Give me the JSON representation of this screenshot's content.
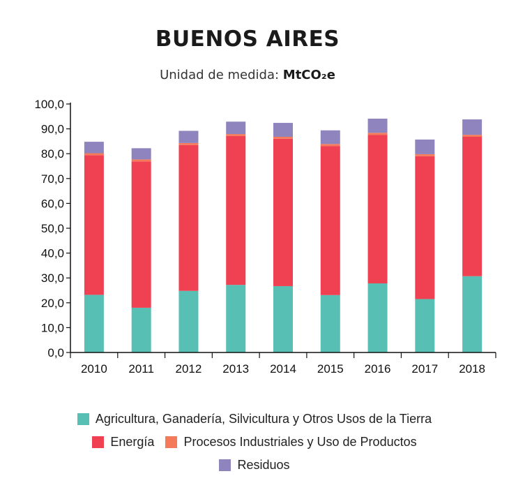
{
  "chart_data": {
    "type": "bar",
    "stacked": true,
    "title": "BUENOS AIRES",
    "subtitle_prefix": "Unidad de medida: ",
    "subtitle_unit": "MtCO₂e",
    "categories": [
      "2010",
      "2011",
      "2012",
      "2013",
      "2014",
      "2015",
      "2016",
      "2017",
      "2018"
    ],
    "ylim": [
      0,
      100
    ],
    "yticks": [
      "0,0",
      "10,0",
      "20,0",
      "30,0",
      "40,0",
      "50,0",
      "60,0",
      "70,0",
      "80,0",
      "90,0",
      "100,0"
    ],
    "series": [
      {
        "name": "Agricultura, Ganadería, Silvicultura y Otros Usos de la Tierra",
        "color": "#58bfb4",
        "values": [
          23.2,
          18.0,
          24.8,
          27.2,
          26.7,
          23.1,
          27.8,
          21.5,
          30.7
        ]
      },
      {
        "name": "Energía",
        "color": "#f04152",
        "values": [
          56.2,
          58.9,
          58.7,
          59.9,
          59.3,
          60.0,
          59.8,
          57.5,
          56.1
        ]
      },
      {
        "name": "Procesos Industriales y Uso de Productos",
        "color": "#f47a5a",
        "values": [
          0.8,
          0.8,
          0.8,
          0.8,
          0.8,
          0.8,
          0.8,
          0.8,
          0.8
        ]
      },
      {
        "name": "Residuos",
        "color": "#8f84bd",
        "values": [
          4.6,
          4.5,
          4.9,
          5.0,
          5.6,
          5.5,
          5.7,
          5.9,
          6.2
        ]
      }
    ],
    "grid": false
  }
}
